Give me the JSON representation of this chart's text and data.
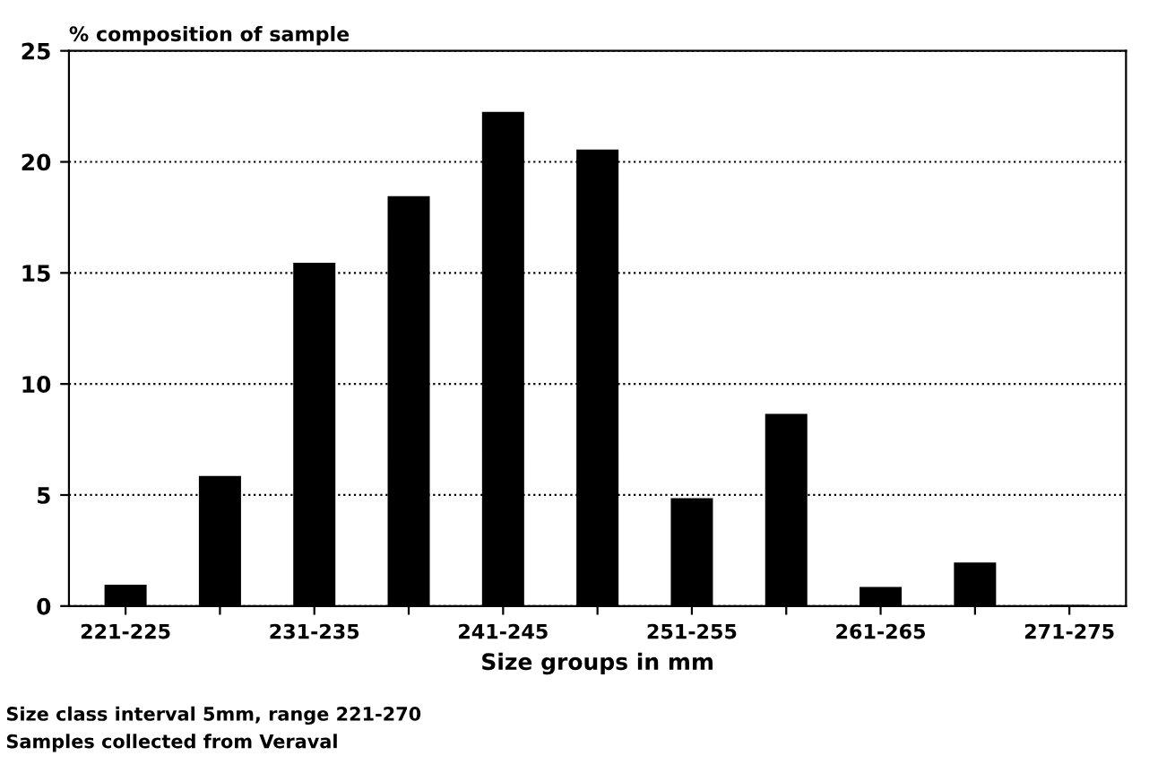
{
  "chart_data": {
    "type": "bar",
    "ylabel": "% composition of sample",
    "xlabel": "Size groups in mm",
    "categories": [
      "221-225",
      null,
      "231-235",
      null,
      "241-245",
      null,
      "251-255",
      null,
      "261-265",
      null,
      "271-275"
    ],
    "values": [
      0.9,
      5.8,
      15.4,
      18.4,
      22.2,
      20.5,
      4.8,
      8.6,
      0.8,
      1.9,
      0
    ],
    "color": "#000000",
    "ylim": [
      0,
      25
    ],
    "yticks": [
      0,
      5,
      10,
      15,
      20,
      25
    ],
    "grid": "y",
    "annotations": [
      "Size class interval 5mm, range 221-270",
      "Samples collected from Veraval"
    ]
  }
}
